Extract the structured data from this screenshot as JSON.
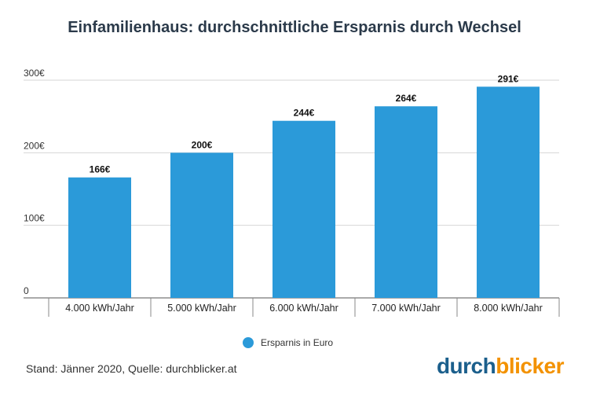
{
  "chart_data": {
    "type": "bar",
    "title": "Einfamilienhaus: durchschnittliche Ersparnis durch Wechsel",
    "categories": [
      "4.000 kWh/Jahr",
      "5.000 kWh/Jahr",
      "6.000 kWh/Jahr",
      "7.000 kWh/Jahr",
      "8.000 kWh/Jahr"
    ],
    "series": [
      {
        "name": "Ersparnis in Euro",
        "values": [
          166,
          200,
          244,
          264,
          291
        ],
        "value_labels": [
          "166€",
          "200€",
          "244€",
          "264€",
          "291€"
        ],
        "color": "#2b9ad9"
      }
    ],
    "ylim": [
      0,
      300
    ],
    "yticks": [
      0,
      100,
      200,
      300
    ],
    "ytick_labels": [
      "0",
      "100€",
      "200€",
      "300€"
    ],
    "grid": true,
    "legend_position": "bottom-center"
  },
  "footer": {
    "source": "Stand: Jänner 2020, Quelle: durchblicker.at"
  },
  "brand": {
    "part1": "durch",
    "part2": "blicker",
    "color1": "#1b5f8c",
    "color2": "#f39200"
  }
}
